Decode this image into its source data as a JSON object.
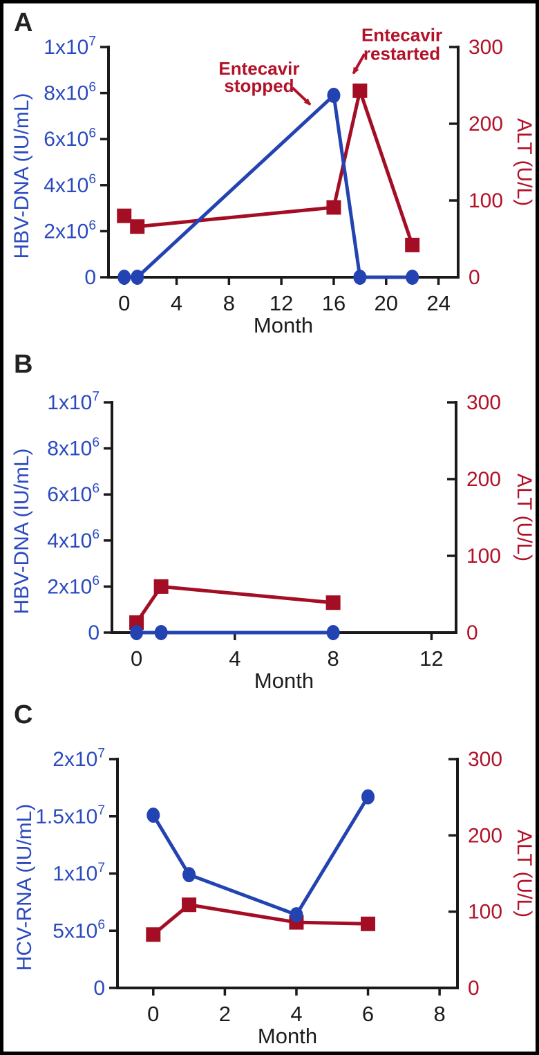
{
  "figure": {
    "background": "#ffffff",
    "border_color": "#000000",
    "colors": {
      "blue_line": "#2243b1",
      "blue_text": "#2b4abf",
      "red_line": "#a40e24",
      "red_text": "#b21228",
      "axis_black": "#1a1a1a",
      "text_black": "#1c1c1c",
      "panel_letter": "#222222"
    }
  },
  "chart_data": [
    {
      "id": "A",
      "type": "line",
      "panel_label": "A",
      "x_axis": {
        "label": "Month",
        "ticks": [
          0,
          4,
          8,
          12,
          16,
          20,
          24
        ],
        "lim": [
          -1.2,
          25.5
        ]
      },
      "left_axis": {
        "label": "HBV-DNA (IU/mL)",
        "lim": [
          0,
          10000000
        ],
        "ticks": [
          {
            "v": 0,
            "t": "0"
          },
          {
            "v": 2000000,
            "t": "2x10^6"
          },
          {
            "v": 4000000,
            "t": "4x10^6"
          },
          {
            "v": 6000000,
            "t": "6x10^6"
          },
          {
            "v": 8000000,
            "t": "8x10^6"
          },
          {
            "v": 10000000,
            "t": "1x10^7"
          }
        ]
      },
      "right_axis": {
        "label": "ALT (U/L)",
        "lim": [
          0,
          300
        ],
        "ticks": [
          {
            "v": 0,
            "t": "0"
          },
          {
            "v": 100,
            "t": "100"
          },
          {
            "v": 200,
            "t": "200"
          },
          {
            "v": 300,
            "t": "300"
          }
        ]
      },
      "series": [
        {
          "name": "ALT",
          "axis": "right",
          "marker": "square",
          "color_key": "red_line",
          "x": [
            0,
            1,
            16,
            18,
            22
          ],
          "y": [
            80,
            66,
            91,
            243,
            42
          ]
        },
        {
          "name": "HBV-DNA",
          "axis": "left",
          "marker": "circle",
          "color_key": "blue_line",
          "x": [
            0,
            1,
            16,
            18,
            22
          ],
          "y": [
            0,
            0,
            7900000,
            0,
            0
          ]
        }
      ],
      "annotations": [
        {
          "id": "entecavir-stopped",
          "lines": [
            "Entecavir",
            "stopped"
          ],
          "x": 10.3,
          "line_baselines": [
            8800000,
            8050000
          ],
          "arrow": {
            "from": [
              12.85,
              8230000
            ],
            "to": [
              14.2,
              7500000
            ]
          }
        },
        {
          "id": "entecavir-restarted",
          "lines": [
            "Entecavir",
            "restarted"
          ],
          "x": 21.2,
          "line_baselines": [
            10250000,
            9450000
          ],
          "arrow": {
            "from": [
              18.35,
              9700000
            ],
            "to": [
              17.5,
              8850000
            ]
          }
        }
      ]
    },
    {
      "id": "B",
      "type": "line",
      "panel_label": "B",
      "x_axis": {
        "label": "Month",
        "ticks": [
          0,
          4,
          8,
          12
        ],
        "lim": [
          -1,
          13
        ]
      },
      "left_axis": {
        "label": "HBV-DNA (IU/mL)",
        "lim": [
          0,
          10000000
        ],
        "ticks": [
          {
            "v": 0,
            "t": "0"
          },
          {
            "v": 2000000,
            "t": "2x10^6"
          },
          {
            "v": 4000000,
            "t": "4x10^6"
          },
          {
            "v": 6000000,
            "t": "6x10^6"
          },
          {
            "v": 8000000,
            "t": "8x10^6"
          },
          {
            "v": 10000000,
            "t": "1x10^7"
          }
        ]
      },
      "right_axis": {
        "label": "ALT (U/L)",
        "lim": [
          0,
          300
        ],
        "ticks": [
          {
            "v": 0,
            "t": "0"
          },
          {
            "v": 100,
            "t": "100"
          },
          {
            "v": 200,
            "t": "200"
          },
          {
            "v": 300,
            "t": "300"
          }
        ]
      },
      "series": [
        {
          "name": "ALT",
          "axis": "right",
          "marker": "square",
          "color_key": "red_line",
          "x": [
            0,
            1,
            8
          ],
          "y": [
            13,
            60,
            39
          ]
        },
        {
          "name": "HBV-DNA",
          "axis": "left",
          "marker": "circle",
          "color_key": "blue_line",
          "x": [
            0,
            1,
            8
          ],
          "y": [
            0,
            0,
            0
          ]
        }
      ],
      "annotations": []
    },
    {
      "id": "C",
      "type": "line",
      "panel_label": "C",
      "x_axis": {
        "label": "Month",
        "ticks": [
          0,
          2,
          4,
          6,
          8
        ],
        "lim": [
          -1,
          8.5
        ]
      },
      "left_axis": {
        "label": "HCV-RNA (IU/mL)",
        "lim": [
          0,
          20000000
        ],
        "ticks": [
          {
            "v": 0,
            "t": "0"
          },
          {
            "v": 5000000,
            "t": "5x10^6"
          },
          {
            "v": 10000000,
            "t": "1x10^7"
          },
          {
            "v": 15000000,
            "t": "1.5x10^7"
          },
          {
            "v": 20000000,
            "t": "2x10^7"
          }
        ]
      },
      "right_axis": {
        "label": "ALT (U/L)",
        "lim": [
          0,
          300
        ],
        "ticks": [
          {
            "v": 0,
            "t": "0"
          },
          {
            "v": 100,
            "t": "100"
          },
          {
            "v": 200,
            "t": "200"
          },
          {
            "v": 300,
            "t": "300"
          }
        ]
      },
      "series": [
        {
          "name": "ALT",
          "axis": "right",
          "marker": "square",
          "color_key": "red_line",
          "x": [
            0,
            1,
            4,
            6
          ],
          "y": [
            70,
            109,
            86,
            84
          ]
        },
        {
          "name": "HCV-RNA",
          "axis": "left",
          "marker": "circle",
          "color_key": "blue_line",
          "x": [
            0,
            1,
            4,
            6
          ],
          "y": [
            15100000,
            9900000,
            6400000,
            16700000
          ]
        }
      ],
      "annotations": []
    }
  ]
}
